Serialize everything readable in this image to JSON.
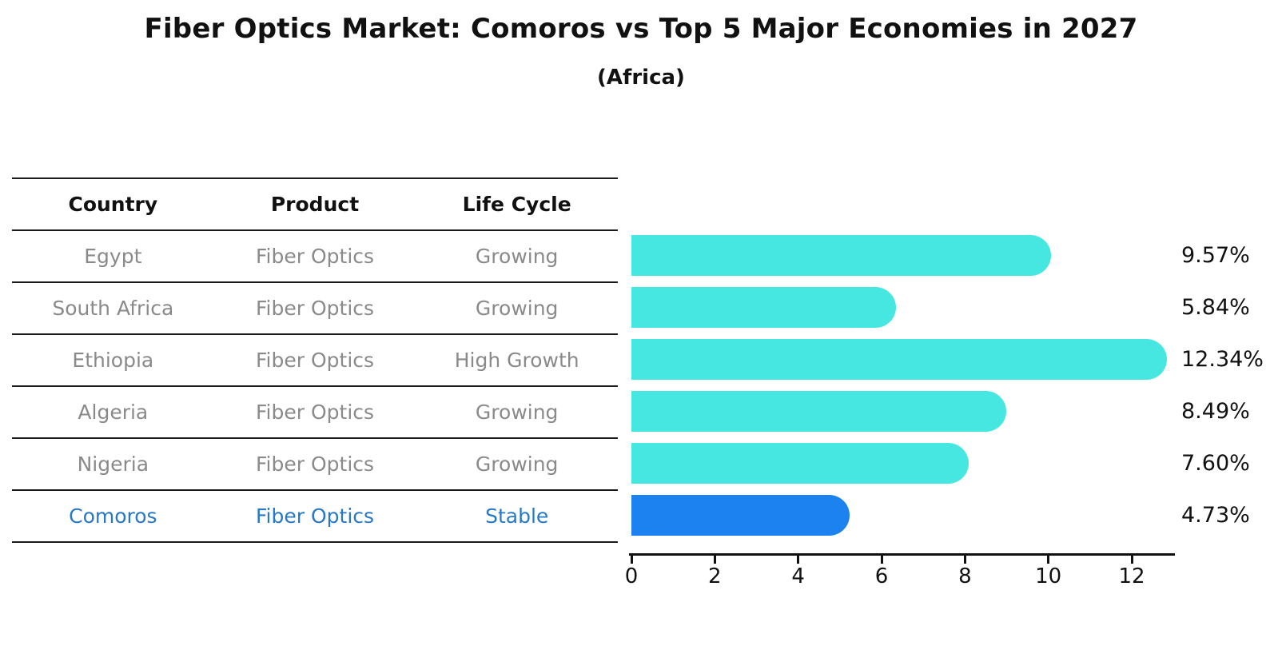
{
  "title": "Fiber Optics Market: Comoros vs Top 5 Major Economies in 2027",
  "subtitle": "(Africa)",
  "colors": {
    "bar_default": "#45e7e0",
    "bar_highlight": "#1b82f0",
    "highlight_text": "#2878c8",
    "table_text": "#8a8a8a",
    "text": "#111111"
  },
  "table": {
    "headers": [
      "Country",
      "Product",
      "Life Cycle"
    ],
    "rows": [
      {
        "country": "Egypt",
        "product": "Fiber Optics",
        "life_cycle": "Growing",
        "value": 9.57,
        "value_label": "9.57%",
        "highlighted": false
      },
      {
        "country": "South Africa",
        "product": "Fiber Optics",
        "life_cycle": "Growing",
        "value": 5.84,
        "value_label": "5.84%",
        "highlighted": false
      },
      {
        "country": "Ethiopia",
        "product": "Fiber Optics",
        "life_cycle": "High Growth",
        "value": 12.34,
        "value_label": "12.34%",
        "highlighted": false
      },
      {
        "country": "Algeria",
        "product": "Fiber Optics",
        "life_cycle": "Growing",
        "value": 8.49,
        "value_label": "8.49%",
        "highlighted": false
      },
      {
        "country": "Nigeria",
        "product": "Fiber Optics",
        "life_cycle": "Growing",
        "value": 7.6,
        "value_label": "7.60%",
        "highlighted": false
      },
      {
        "country": "Comoros",
        "product": "Fiber Optics",
        "life_cycle": "Stable",
        "value": 4.73,
        "value_label": "4.73%",
        "highlighted": true
      }
    ]
  },
  "chart_data": {
    "type": "bar",
    "orientation": "horizontal",
    "title": "Fiber Optics Market: Comoros vs Top 5 Major Economies in 2027",
    "subtitle": "(Africa)",
    "categories": [
      "Egypt",
      "South Africa",
      "Ethiopia",
      "Algeria",
      "Nigeria",
      "Comoros"
    ],
    "values": [
      9.57,
      5.84,
      12.34,
      8.49,
      7.6,
      4.73
    ],
    "value_labels": [
      "9.57%",
      "5.84%",
      "12.34%",
      "8.49%",
      "7.60%",
      "4.73%"
    ],
    "xlabel": "",
    "ylabel": "",
    "xlim": [
      0,
      13
    ],
    "x_ticks": [
      0,
      2,
      4,
      6,
      8,
      10,
      12
    ],
    "grid": false,
    "legend": false,
    "highlight_index": 5,
    "bar_color": "#45e7e0",
    "highlight_color": "#1b82f0"
  }
}
